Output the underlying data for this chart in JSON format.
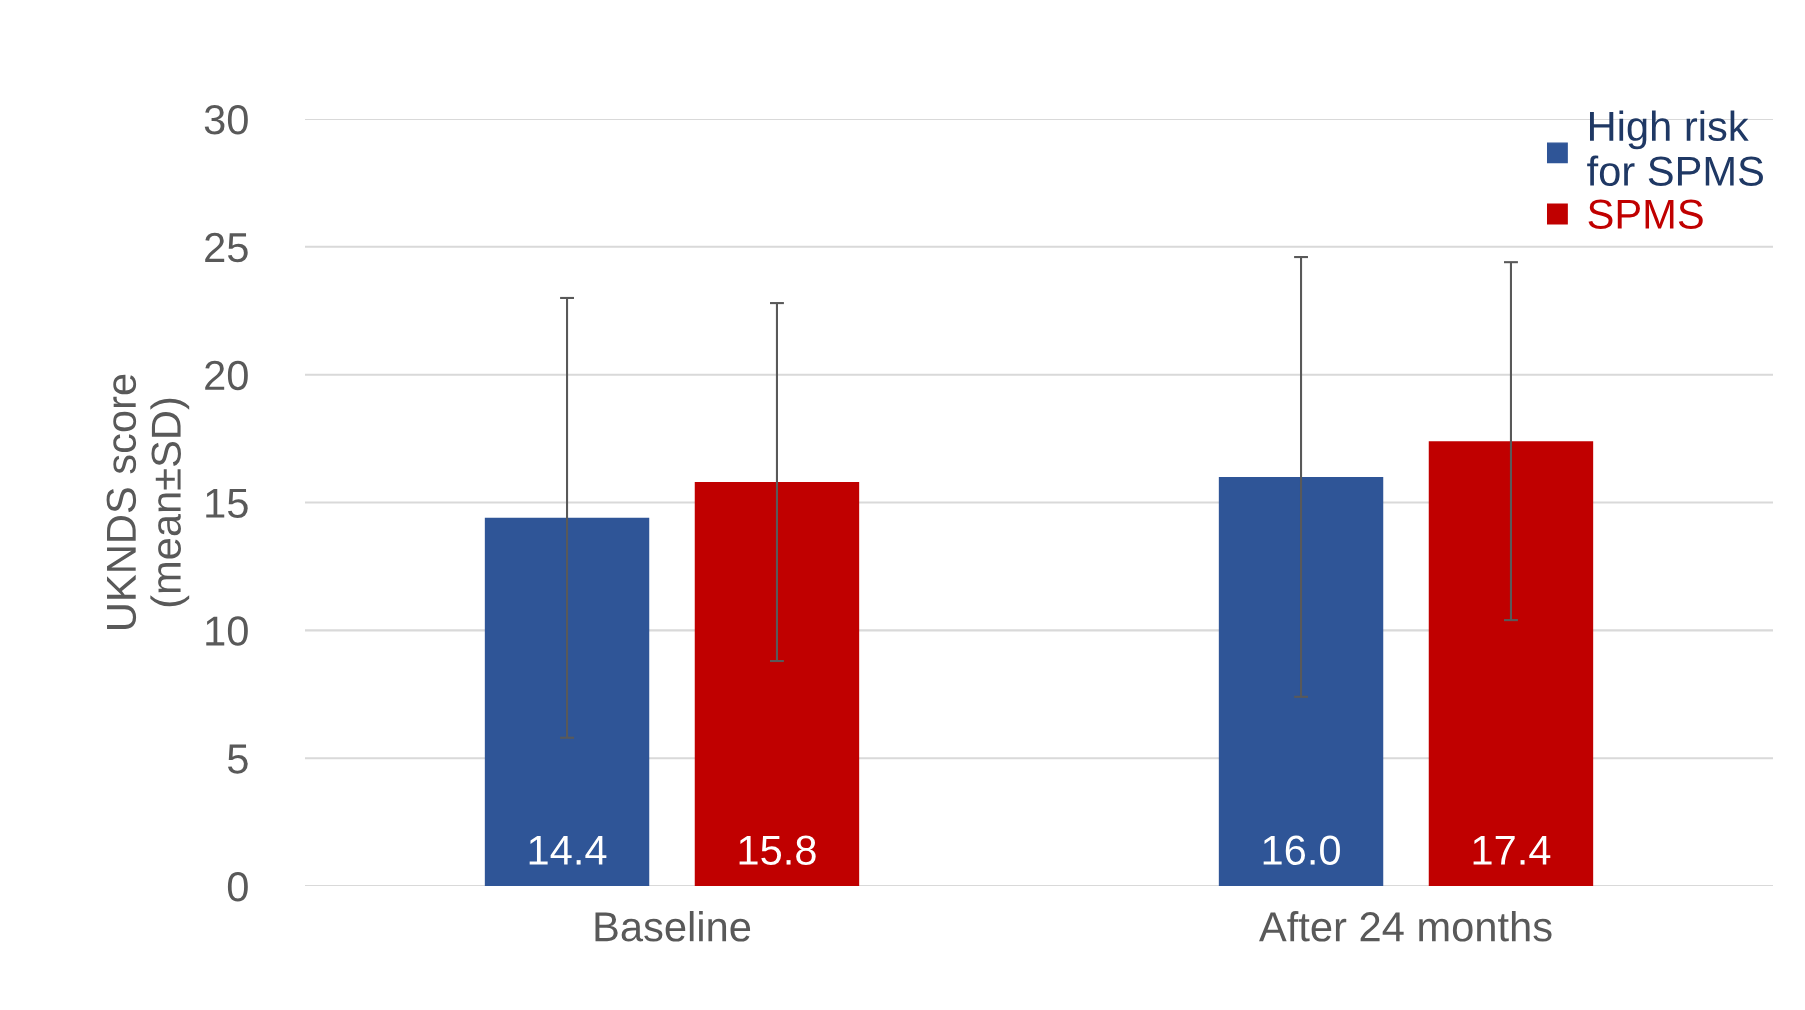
{
  "chart_data": {
    "type": "bar",
    "ylabel": "UKNDS score\n(mean±SD)",
    "categories": [
      "Baseline",
      "After 24 months"
    ],
    "series": [
      {
        "name": "High risk\nfor SPMS",
        "color": "#2f5597",
        "values": [
          14.4,
          16.0
        ],
        "errors": [
          8.6,
          8.6
        ],
        "value_labels": [
          "14.4",
          "16.0"
        ]
      },
      {
        "name": "SPMS",
        "color": "#c00000",
        "values": [
          15.8,
          17.4
        ],
        "errors": [
          7.0,
          7.0
        ],
        "value_labels": [
          "15.8",
          "17.4"
        ]
      }
    ],
    "ylim": [
      0,
      30
    ],
    "yticks": [
      0,
      5,
      10,
      15,
      20,
      25,
      30
    ],
    "grid": "y",
    "legend": "top right"
  }
}
